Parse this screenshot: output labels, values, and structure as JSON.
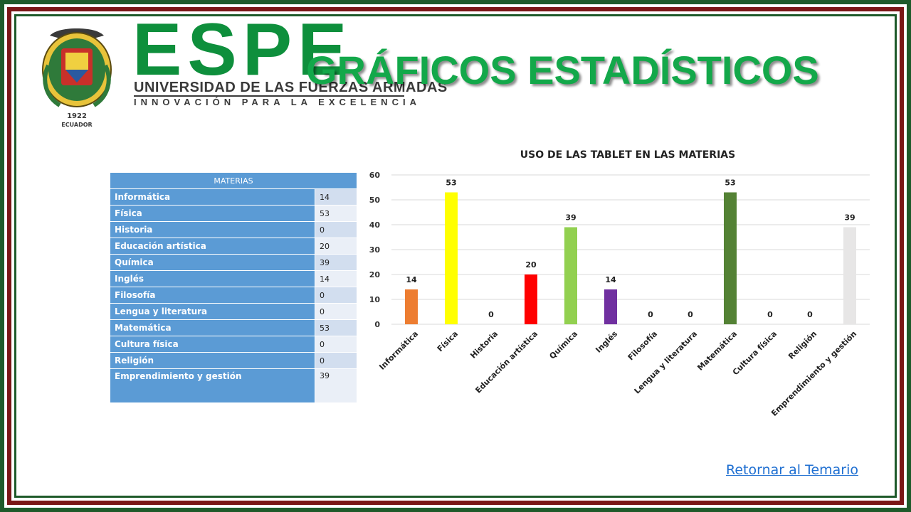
{
  "logo": {
    "wordmark": "ESPE",
    "university": "UNIVERSIDAD DE LAS FUERZAS ARMADAS",
    "tagline": "INNOVACIÓN PARA LA EXCELENCIA",
    "seal_year": "1922",
    "seal_country": "ECUADOR"
  },
  "page_title": "GRÁFICOS ESTADÍSTICOS",
  "table": {
    "header": "MATERIAS",
    "rows": [
      {
        "name": "Informática",
        "value": "14"
      },
      {
        "name": "Física",
        "value": "53"
      },
      {
        "name": "Historia",
        "value": "0"
      },
      {
        "name": "Educación artística",
        "value": "20"
      },
      {
        "name": "Química",
        "value": "39"
      },
      {
        "name": "Inglés",
        "value": "14"
      },
      {
        "name": "Filosofía",
        "value": "0"
      },
      {
        "name": "Lengua y literatura",
        "value": "0"
      },
      {
        "name": "Matemática",
        "value": "53"
      },
      {
        "name": "Cultura física",
        "value": "0"
      },
      {
        "name": "Religión",
        "value": "0"
      },
      {
        "name": "Emprendimiento y gestión",
        "value": "39"
      }
    ]
  },
  "chart_data": {
    "type": "bar",
    "title": "USO DE LAS TABLET EN LAS MATERIAS",
    "categories": [
      "Informática",
      "Física",
      "Historia",
      "Educación artística",
      "Química",
      "Inglés",
      "Filosofía",
      "Lengua y literatura",
      "Matemática",
      "Cultura física",
      "Religión",
      "Emprendimiento y gestión"
    ],
    "values": [
      14,
      53,
      0,
      20,
      39,
      14,
      0,
      0,
      53,
      0,
      0,
      39
    ],
    "colors": [
      "#ed7d31",
      "#ffff00",
      "#a5a5a5",
      "#ff0000",
      "#92d050",
      "#7030a0",
      "#a5a5a5",
      "#a5a5a5",
      "#548235",
      "#a5a5a5",
      "#a5a5a5",
      "#e7e6e6"
    ],
    "yticks": [
      0,
      10,
      20,
      30,
      40,
      50,
      60
    ],
    "ylim": [
      0,
      60
    ],
    "grid": true,
    "legend": "none"
  },
  "links": {
    "return_label": "Retornar al Temario"
  }
}
